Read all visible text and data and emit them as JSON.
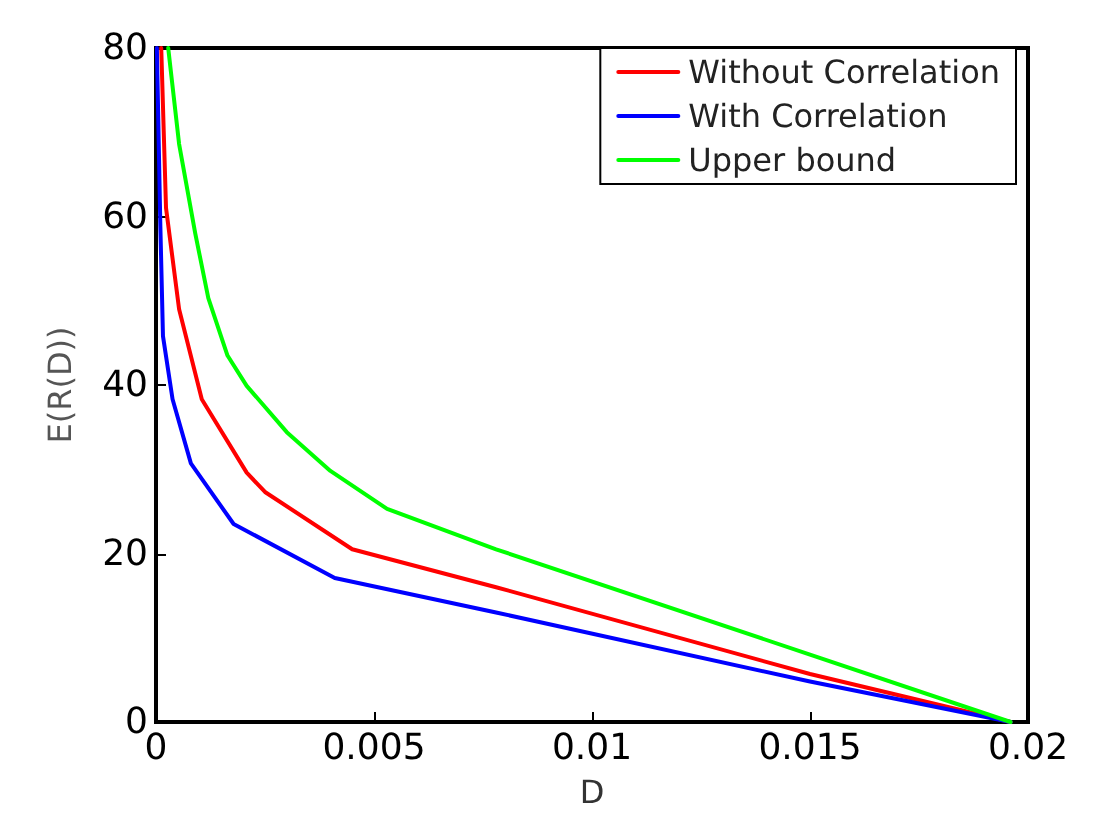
{
  "chart_data": {
    "type": "line",
    "xlabel": "D",
    "ylabel": "E(R(D))",
    "xlim": [
      0,
      0.02
    ],
    "ylim": [
      0,
      80
    ],
    "xticks": [
      0,
      0.005,
      0.01,
      0.015,
      0.02
    ],
    "yticks": [
      0,
      20,
      40,
      60,
      80
    ],
    "series": [
      {
        "name": "Without Correlation",
        "color": "#ff0000",
        "x": [
          0.00012,
          0.00023,
          0.00053,
          0.00105,
          0.00208,
          0.0025,
          0.0045,
          0.0078,
          0.015,
          0.0196
        ],
        "values": [
          80,
          61,
          49,
          38.3,
          29.6,
          27.3,
          20.5,
          16,
          5.7,
          0
        ]
      },
      {
        "name": "With Correlation",
        "color": "#0000ff",
        "x": [
          2e-05,
          0.0001,
          0.00016,
          0.00038,
          0.0008,
          0.00178,
          0.0041,
          0.0078,
          0.015,
          0.0196
        ],
        "values": [
          80,
          58.8,
          45.8,
          38.3,
          30.7,
          23.5,
          17.1,
          13,
          4.8,
          0
        ]
      },
      {
        "name": "Upper bound",
        "color": "#00ff00",
        "x": [
          0.00028,
          0.00053,
          0.0009,
          0.0012,
          0.00164,
          0.00208,
          0.003,
          0.004,
          0.0053,
          0.0078,
          0.015,
          0.0196
        ],
        "values": [
          80,
          68.6,
          58,
          50.3,
          43.5,
          39.9,
          34.4,
          29.8,
          25.3,
          20.5,
          8,
          0
        ]
      }
    ],
    "legend": "top right",
    "grid": false,
    "marker": "none",
    "line_style": "solid"
  }
}
